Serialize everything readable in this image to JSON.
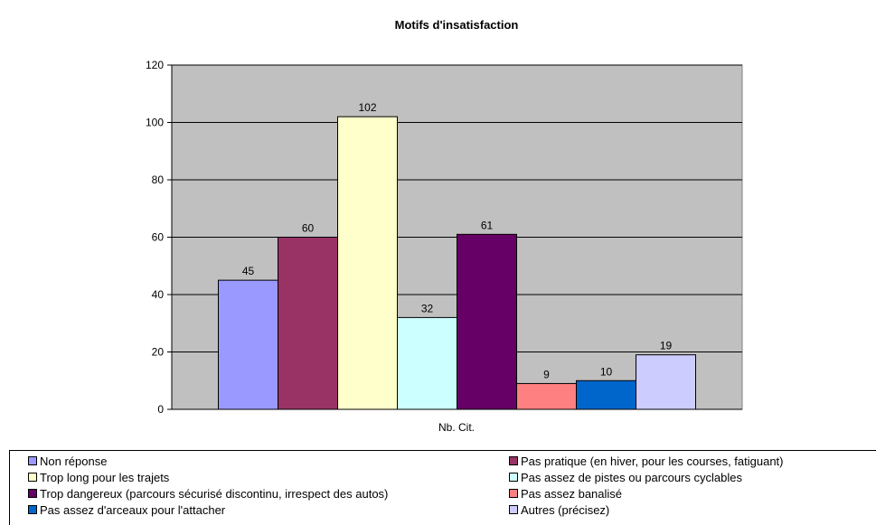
{
  "chart_data": {
    "type": "bar",
    "title": "Motifs d'insatisfaction",
    "xlabel": "Nb. Cit.",
    "ylabel": "",
    "categories": [
      "Nb. Cit."
    ],
    "ylim": [
      0,
      120
    ],
    "yticks": [
      0,
      20,
      40,
      60,
      80,
      100,
      120
    ],
    "grid": true,
    "legend_position": "bottom",
    "plot_background": "#c0c0c0",
    "series": [
      {
        "name": "Non réponse",
        "values": [
          45
        ],
        "color": "#9999ff"
      },
      {
        "name": "Pas pratique (en hiver, pour les courses, fatiguant)",
        "values": [
          60
        ],
        "color": "#993366"
      },
      {
        "name": "Trop long pour les trajets",
        "values": [
          102
        ],
        "color": "#ffffcc"
      },
      {
        "name": "Pas assez de pistes ou parcours cyclables",
        "values": [
          32
        ],
        "color": "#ccffff"
      },
      {
        "name": "Trop dangereux (parcours sécurisé discontinu, irrespect des autos)",
        "values": [
          61
        ],
        "color": "#660066"
      },
      {
        "name": "Pas assez banalisé",
        "values": [
          9
        ],
        "color": "#ff8080"
      },
      {
        "name": "Pas assez d'arceaux pour l'attacher",
        "values": [
          10
        ],
        "color": "#0066cc"
      },
      {
        "name": "Autres (précisez)",
        "values": [
          19
        ],
        "color": "#ccccff"
      }
    ]
  }
}
